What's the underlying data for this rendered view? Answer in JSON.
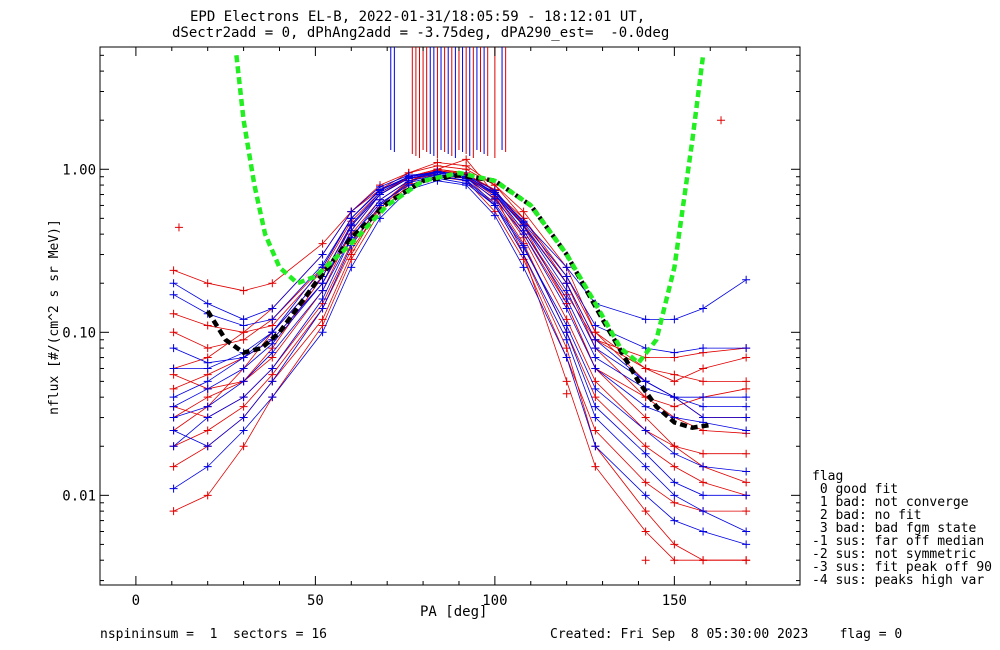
{
  "header": {
    "title": "EPD Electrons EL-B, 2022-01-31/18:05:59 - 18:12:01 UT,",
    "subtitle": "dSectr2add = 0, dPhAng2add = -3.75deg, dPA290_est=  -0.0deg"
  },
  "footer": {
    "left": "nspininsum =  1  sectors = 16",
    "right": "Created: Fri Sep  8 05:30:00 2023    flag = 0"
  },
  "legend": {
    "title": "flag",
    "items": [
      " 0 good fit",
      " 1 bad: not converge",
      " 2 bad: no fit",
      " 3 bad: bad fgm state",
      "-1 sus: far off median",
      "-2 sus: not symmetric",
      "-3 sus: fit peak off 90",
      "-4 sus: peaks high var"
    ]
  },
  "colors": {
    "red_series": "#e00000",
    "blue_series": "#0000e0",
    "fit_black": "#000000",
    "fit_green": "#22ee22"
  },
  "chart_data": {
    "type": "line",
    "xlabel": "PA [deg]",
    "ylabel": "nflux [#/(cm^2 s sr MeV)]",
    "xlim": [
      -10,
      185
    ],
    "ylim_log10": [
      -2.55,
      0.75
    ],
    "y_scale": "log",
    "x_ticks": [
      0,
      50,
      100,
      150
    ],
    "y_ticks": [
      {
        "value": 0.01,
        "label": "0.01"
      },
      {
        "value": 0.1,
        "label": "0.10"
      },
      {
        "value": 1.0,
        "label": "1.00"
      }
    ],
    "pa_sectors": [
      10.5,
      20,
      30,
      38,
      52,
      60,
      68,
      76,
      84,
      92,
      100,
      108,
      120,
      128,
      142,
      150,
      158,
      170
    ],
    "series": [
      {
        "color": "red",
        "y": [
          0.06,
          0.07,
          0.1,
          0.14,
          0.3,
          0.55,
          0.8,
          0.95,
          1.05,
          1.0,
          0.8,
          0.55,
          0.25,
          0.1,
          0.05,
          0.04,
          0.03,
          0.03
        ]
      },
      {
        "color": "red",
        "y": [
          0.025,
          0.035,
          0.06,
          0.1,
          0.22,
          0.45,
          0.7,
          0.9,
          1.0,
          0.95,
          0.7,
          0.4,
          0.15,
          0.06,
          0.03,
          0.02,
          0.015,
          0.012
        ]
      },
      {
        "color": "red",
        "y": [
          0.24,
          0.2,
          0.18,
          0.2,
          0.35,
          0.55,
          0.75,
          0.88,
          0.92,
          0.88,
          0.72,
          0.5,
          0.22,
          0.1,
          0.06,
          0.05,
          0.06,
          0.07
        ]
      },
      {
        "color": "red",
        "y": [
          0.015,
          0.02,
          0.03,
          0.05,
          0.12,
          0.3,
          0.6,
          0.85,
          0.95,
          0.9,
          0.6,
          0.3,
          0.08,
          0.02,
          0.008,
          0.005,
          0.004,
          0.004
        ]
      },
      {
        "color": "red",
        "y": [
          0.1,
          0.08,
          0.09,
          0.12,
          0.25,
          0.5,
          0.75,
          0.95,
          1.1,
          1.05,
          0.8,
          0.5,
          0.2,
          0.08,
          0.04,
          0.03,
          0.025,
          0.024
        ]
      },
      {
        "color": "red",
        "y": [
          0.045,
          0.055,
          0.07,
          0.09,
          0.2,
          0.4,
          0.65,
          0.85,
          0.98,
          0.93,
          0.75,
          0.45,
          0.15,
          0.06,
          0.04,
          0.035,
          0.04,
          0.045
        ]
      },
      {
        "color": "red",
        "y": [
          0.035,
          0.03,
          0.04,
          0.06,
          0.15,
          0.35,
          0.6,
          0.85,
          0.95,
          0.9,
          0.65,
          0.35,
          0.1,
          0.04,
          0.02,
          0.015,
          0.012,
          0.01
        ]
      },
      {
        "color": "red",
        "y": [
          0.02,
          0.025,
          0.035,
          0.055,
          0.14,
          0.32,
          0.58,
          0.82,
          1.0,
          1.15,
          0.7,
          0.3,
          0.05,
          0.015,
          0.006,
          0.004,
          0.004,
          0.004
        ]
      },
      {
        "color": "red",
        "y": [
          0.055,
          0.045,
          0.05,
          0.07,
          0.18,
          0.42,
          0.7,
          0.9,
          1.0,
          0.95,
          0.7,
          0.42,
          0.17,
          0.09,
          0.07,
          0.07,
          0.075,
          0.08
        ]
      },
      {
        "color": "red",
        "y": [
          0.03,
          0.04,
          0.05,
          0.08,
          0.22,
          0.45,
          0.7,
          0.88,
          0.95,
          0.9,
          0.68,
          0.38,
          0.12,
          0.05,
          0.025,
          0.02,
          0.018,
          0.018
        ]
      },
      {
        "color": "red",
        "y": [
          0.008,
          0.01,
          0.02,
          0.04,
          0.11,
          0.28,
          0.55,
          0.8,
          0.9,
          0.85,
          0.55,
          0.28,
          0.07,
          0.025,
          0.012,
          0.009,
          0.008,
          0.008
        ]
      },
      {
        "color": "red",
        "y": [
          0.13,
          0.11,
          0.1,
          0.11,
          0.24,
          0.48,
          0.72,
          0.9,
          0.98,
          0.94,
          0.74,
          0.46,
          0.2,
          0.09,
          0.06,
          0.055,
          0.05,
          0.05
        ]
      },
      {
        "color": "blue",
        "y": [
          0.04,
          0.05,
          0.07,
          0.1,
          0.25,
          0.5,
          0.75,
          0.9,
          0.95,
          0.88,
          0.7,
          0.45,
          0.2,
          0.09,
          0.05,
          0.04,
          0.03,
          0.03
        ]
      },
      {
        "color": "blue",
        "y": [
          0.2,
          0.15,
          0.12,
          0.14,
          0.3,
          0.55,
          0.78,
          0.92,
          0.95,
          0.9,
          0.72,
          0.48,
          0.25,
          0.15,
          0.12,
          0.12,
          0.14,
          0.21
        ]
      },
      {
        "color": "blue",
        "y": [
          0.02,
          0.03,
          0.04,
          0.06,
          0.16,
          0.38,
          0.65,
          0.85,
          0.92,
          0.85,
          0.6,
          0.3,
          0.09,
          0.03,
          0.015,
          0.01,
          0.008,
          0.006
        ]
      },
      {
        "color": "blue",
        "y": [
          0.08,
          0.065,
          0.07,
          0.09,
          0.2,
          0.42,
          0.7,
          0.88,
          0.95,
          0.9,
          0.72,
          0.45,
          0.18,
          0.08,
          0.05,
          0.04,
          0.035,
          0.035
        ]
      },
      {
        "color": "blue",
        "y": [
          0.03,
          0.035,
          0.05,
          0.075,
          0.18,
          0.38,
          0.62,
          0.8,
          0.88,
          0.82,
          0.6,
          0.33,
          0.11,
          0.045,
          0.025,
          0.018,
          0.015,
          0.014
        ]
      },
      {
        "color": "blue",
        "y": [
          0.011,
          0.015,
          0.025,
          0.04,
          0.1,
          0.25,
          0.5,
          0.75,
          0.85,
          0.8,
          0.52,
          0.25,
          0.07,
          0.02,
          0.01,
          0.007,
          0.006,
          0.005
        ]
      },
      {
        "color": "blue",
        "y": [
          0.17,
          0.13,
          0.11,
          0.12,
          0.26,
          0.5,
          0.74,
          0.9,
          0.97,
          0.92,
          0.74,
          0.47,
          0.22,
          0.11,
          0.08,
          0.075,
          0.08,
          0.08
        ]
      },
      {
        "color": "blue",
        "y": [
          0.035,
          0.045,
          0.06,
          0.085,
          0.2,
          0.45,
          0.7,
          0.88,
          0.93,
          0.88,
          0.66,
          0.4,
          0.14,
          0.06,
          0.035,
          0.03,
          0.028,
          0.025
        ]
      },
      {
        "color": "blue",
        "y": [
          0.025,
          0.02,
          0.03,
          0.05,
          0.14,
          0.34,
          0.6,
          0.83,
          0.9,
          0.86,
          0.62,
          0.34,
          0.1,
          0.035,
          0.018,
          0.012,
          0.01,
          0.01
        ]
      },
      {
        "color": "blue",
        "y": [
          0.06,
          0.06,
          0.075,
          0.1,
          0.22,
          0.46,
          0.72,
          0.9,
          0.96,
          0.92,
          0.7,
          0.42,
          0.16,
          0.07,
          0.045,
          0.04,
          0.04,
          0.04
        ]
      }
    ],
    "fit_black": {
      "x": [
        20,
        25,
        30,
        35,
        40,
        50,
        60,
        70,
        80,
        90,
        100,
        110,
        120,
        130,
        140,
        145,
        150,
        155,
        160
      ],
      "y": [
        0.135,
        0.09,
        0.075,
        0.08,
        0.1,
        0.2,
        0.38,
        0.62,
        0.85,
        0.92,
        0.85,
        0.6,
        0.3,
        0.12,
        0.05,
        0.035,
        0.028,
        0.026,
        0.027
      ]
    },
    "fit_green": {
      "x": [
        28,
        30,
        33,
        36,
        40,
        45,
        50,
        60,
        70,
        80,
        90,
        100,
        110,
        120,
        128,
        135,
        140,
        145,
        150,
        155,
        158
      ],
      "y": [
        5.0,
        2.0,
        0.8,
        0.4,
        0.25,
        0.2,
        0.22,
        0.35,
        0.6,
        0.85,
        0.95,
        0.85,
        0.6,
        0.3,
        0.15,
        0.08,
        0.065,
        0.09,
        0.25,
        1.5,
        5.0
      ]
    },
    "spikes": [
      {
        "pa": 71,
        "color": "blue"
      },
      {
        "pa": 72,
        "color": "blue"
      },
      {
        "pa": 77,
        "color": "red"
      },
      {
        "pa": 78,
        "color": "red"
      },
      {
        "pa": 79,
        "color": "red"
      },
      {
        "pa": 80,
        "color": "red"
      },
      {
        "pa": 81,
        "color": "red"
      },
      {
        "pa": 82,
        "color": "blue"
      },
      {
        "pa": 83,
        "color": "blue"
      },
      {
        "pa": 84,
        "color": "red"
      },
      {
        "pa": 85,
        "color": "blue"
      },
      {
        "pa": 86,
        "color": "red"
      },
      {
        "pa": 87,
        "color": "blue"
      },
      {
        "pa": 88,
        "color": "red"
      },
      {
        "pa": 89,
        "color": "blue"
      },
      {
        "pa": 90,
        "color": "red"
      },
      {
        "pa": 91,
        "color": "blue"
      },
      {
        "pa": 92,
        "color": "red"
      },
      {
        "pa": 93,
        "color": "blue"
      },
      {
        "pa": 94,
        "color": "red"
      },
      {
        "pa": 95,
        "color": "blue"
      },
      {
        "pa": 96,
        "color": "red"
      },
      {
        "pa": 97,
        "color": "blue"
      },
      {
        "pa": 98,
        "color": "red"
      },
      {
        "pa": 100,
        "color": "red"
      },
      {
        "pa": 102,
        "color": "blue"
      },
      {
        "pa": 103,
        "color": "red"
      }
    ],
    "outliers": [
      {
        "pa": 12,
        "y": 0.44,
        "color": "red"
      },
      {
        "pa": 163,
        "y": 2.0,
        "color": "red"
      },
      {
        "pa": 120,
        "y": 0.042,
        "color": "red"
      },
      {
        "pa": 142,
        "y": 0.004,
        "color": "red"
      }
    ]
  }
}
